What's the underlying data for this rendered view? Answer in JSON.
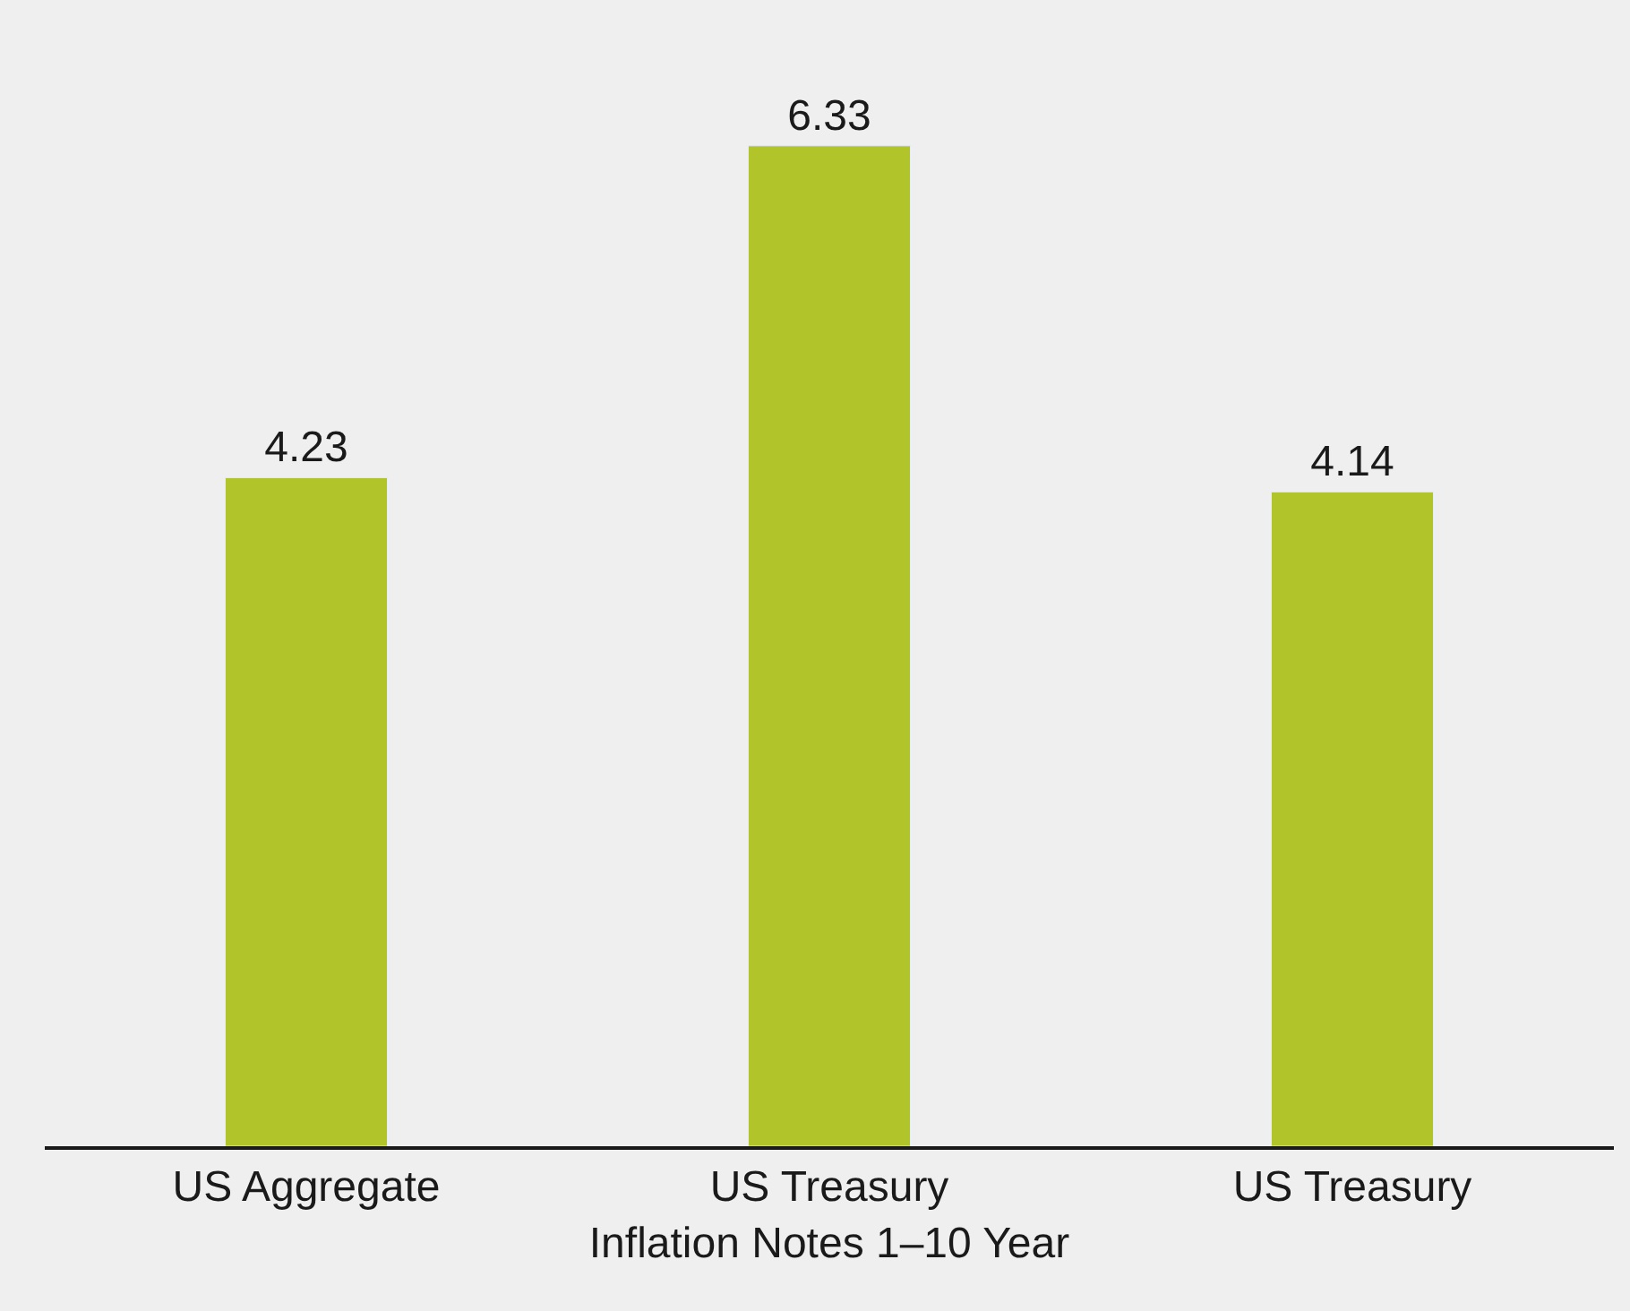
{
  "chart_data": {
    "type": "bar",
    "categories": [
      "US Aggregate",
      "US Treasury\nInflation Notes 1–10 Year",
      "US Treasury"
    ],
    "values": [
      4.23,
      6.33,
      4.14
    ],
    "color": "#b1c42a",
    "data_labels": true,
    "grid": false,
    "legend": false
  }
}
